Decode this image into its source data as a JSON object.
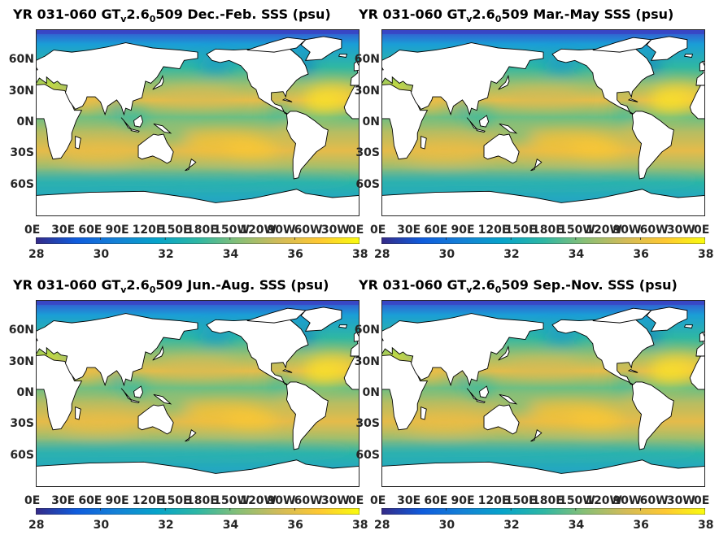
{
  "panels": [
    {
      "prefix": "YR 031-060 GT",
      "sub1": "v",
      "mid": "2.6",
      "sub2": "0",
      "suffix": "509 Dec.-Feb. SSS (psu)"
    },
    {
      "prefix": "YR 031-060 GT",
      "sub1": "v",
      "mid": "2.6",
      "sub2": "0",
      "suffix": "509 Mar.-May SSS (psu)"
    },
    {
      "prefix": "YR 031-060 GT",
      "sub1": "v",
      "mid": "2.6",
      "sub2": "0",
      "suffix": "509 Jun.-Aug. SSS (psu)"
    },
    {
      "prefix": "YR 031-060 GT",
      "sub1": "v",
      "mid": "2.6",
      "sub2": "0",
      "suffix": "509 Sep.-Nov. SSS (psu)"
    }
  ],
  "lat_labels": [
    "60N",
    "30N",
    "0N",
    "30S",
    "60S"
  ],
  "lon_labels": [
    "0E",
    "30E",
    "60E",
    "90E",
    "120E",
    "150E",
    "180E",
    "150W",
    "120W",
    "90W",
    "60W",
    "30W",
    "0E"
  ],
  "colorbar": {
    "ticks": [
      "28",
      "30",
      "32",
      "34",
      "36",
      "38"
    ],
    "range": [
      28,
      38
    ],
    "colormap": "parula",
    "colors": [
      "#352a87",
      "#0f5cdd",
      "#1481d6",
      "#06a4ca",
      "#2eb7a4",
      "#87bf77",
      "#d1bb59",
      "#fec832",
      "#f9fb0e"
    ]
  },
  "map": {
    "land_color": "#ffffff",
    "coast_color": "#000000",
    "lat_range": [
      -90,
      90
    ],
    "lon_range": [
      0,
      360
    ]
  }
}
